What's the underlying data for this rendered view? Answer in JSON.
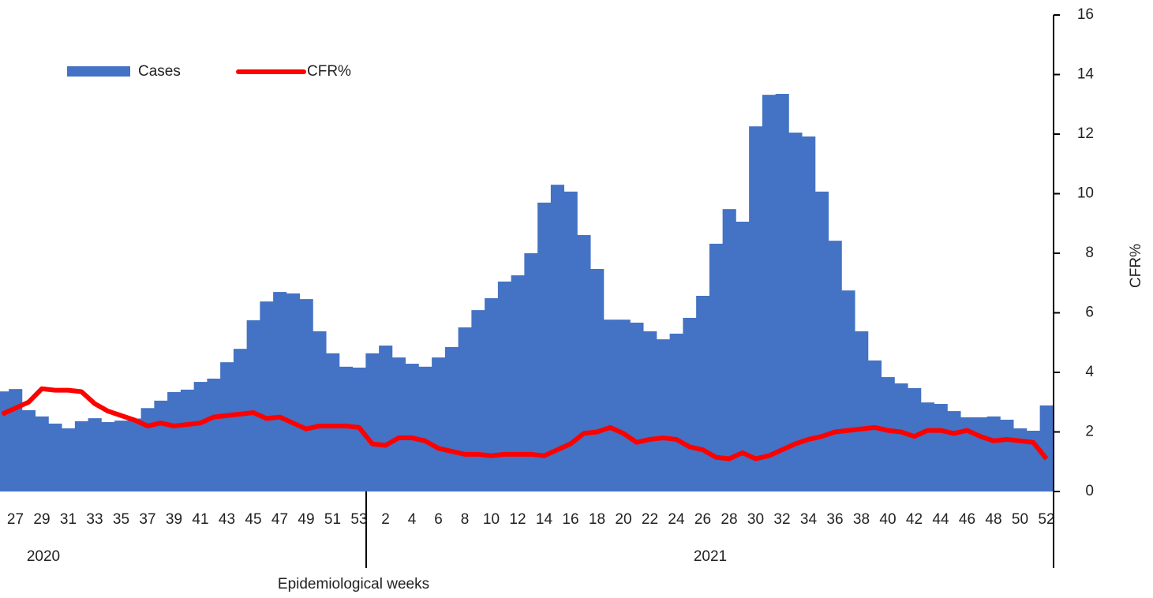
{
  "chart_data": {
    "type": "bar_line",
    "xlabel": "Epidemiological weeks",
    "ylabel": "CFR%",
    "x_groups": [
      "2020",
      "2021"
    ],
    "categories": [
      null,
      "27",
      null,
      "29",
      null,
      "31",
      null,
      "33",
      null,
      "35",
      null,
      "37",
      null,
      "39",
      null,
      "41",
      null,
      "43",
      null,
      "45",
      null,
      "47",
      null,
      "49",
      null,
      "51",
      null,
      "53",
      null,
      "2",
      null,
      "4",
      null,
      "6",
      null,
      "8",
      null,
      "10",
      null,
      "12",
      null,
      "14",
      null,
      "16",
      null,
      "18",
      null,
      "20",
      null,
      "22",
      null,
      "24",
      null,
      "26",
      null,
      "28",
      null,
      "30",
      null,
      "32",
      null,
      "34",
      null,
      "36",
      null,
      "38",
      null,
      "40",
      null,
      "42",
      null,
      "44",
      null,
      "46",
      null,
      "48",
      null,
      "50",
      null,
      "52"
    ],
    "series": [
      {
        "name": "Cases",
        "kind": "bar",
        "color": "#4472c4",
        "values": [
          3.36,
          3.44,
          2.73,
          2.52,
          2.28,
          2.12,
          2.36,
          2.46,
          2.33,
          2.38,
          2.45,
          2.8,
          3.05,
          3.34,
          3.42,
          3.68,
          3.79,
          4.34,
          4.79,
          5.75,
          6.38,
          6.7,
          6.65,
          6.46,
          5.38,
          4.64,
          4.19,
          4.16,
          4.64,
          4.9,
          4.5,
          4.29,
          4.19,
          4.5,
          4.85,
          5.51,
          6.09,
          6.49,
          7.05,
          7.26,
          8.0,
          9.7,
          10.3,
          10.07,
          8.61,
          7.47,
          5.77,
          5.77,
          5.67,
          5.38,
          5.11,
          5.3,
          5.83,
          6.57,
          8.32,
          9.48,
          9.06,
          12.26,
          13.32,
          13.35,
          12.05,
          11.92,
          10.07,
          8.42,
          6.75,
          5.38,
          4.4,
          3.84,
          3.63,
          3.47,
          2.99,
          2.94,
          2.7,
          2.49,
          2.49,
          2.52,
          2.41,
          2.12,
          2.04,
          2.89
        ]
      },
      {
        "name": "CFR%",
        "kind": "line",
        "color": "#ff0000",
        "values": [
          2.6,
          2.8,
          3.0,
          3.45,
          3.4,
          3.4,
          3.35,
          2.95,
          2.7,
          2.55,
          2.4,
          2.2,
          2.3,
          2.2,
          2.25,
          2.3,
          2.5,
          2.55,
          2.6,
          2.65,
          2.45,
          2.5,
          2.3,
          2.1,
          2.2,
          2.2,
          2.2,
          2.15,
          1.6,
          1.55,
          1.8,
          1.8,
          1.7,
          1.45,
          1.35,
          1.25,
          1.25,
          1.2,
          1.25,
          1.25,
          1.25,
          1.2,
          1.4,
          1.6,
          1.95,
          2.0,
          2.15,
          1.95,
          1.65,
          1.75,
          1.8,
          1.75,
          1.5,
          1.4,
          1.15,
          1.1,
          1.3,
          1.1,
          1.2,
          1.4,
          1.6,
          1.75,
          1.85,
          2.0,
          2.05,
          2.1,
          2.15,
          2.05,
          2.0,
          1.85,
          2.05,
          2.05,
          1.95,
          2.05,
          1.85,
          1.7,
          1.75,
          1.7,
          1.65,
          1.1
        ]
      }
    ],
    "ylim": [
      0,
      16
    ],
    "yticks": [
      0,
      2,
      4,
      6,
      8,
      10,
      12,
      14,
      16
    ]
  }
}
